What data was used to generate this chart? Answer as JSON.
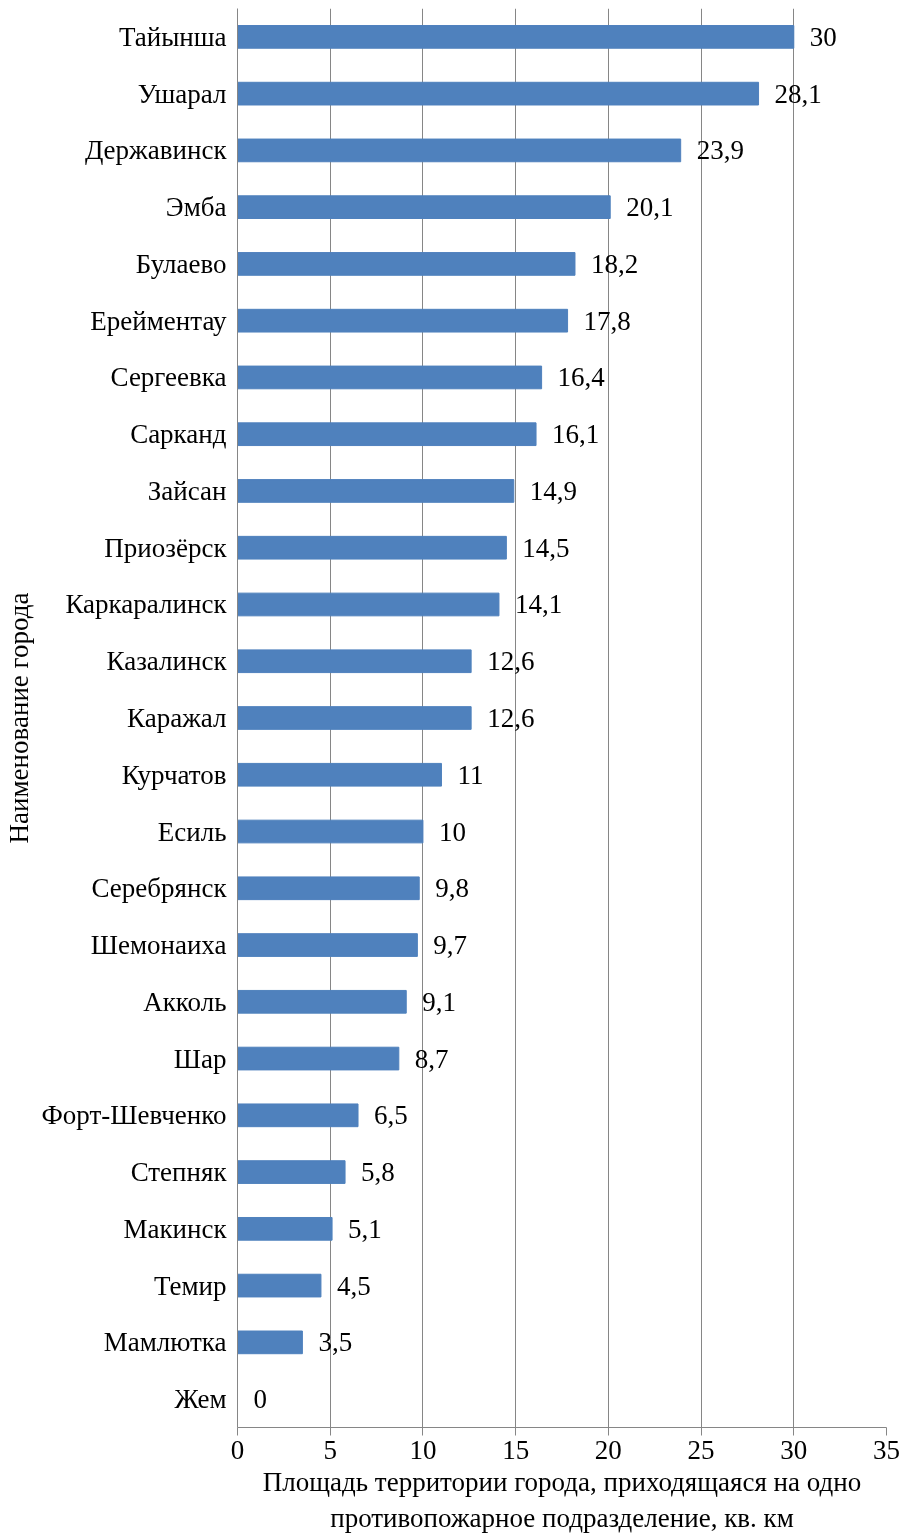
{
  "chart_data": {
    "type": "bar",
    "orientation": "horizontal",
    "xlabel": "Площадь территории города, приходящаяся на одно противопожарное подразделение, кв. км",
    "ylabel": "Наименование города",
    "categories": [
      "Тайынша",
      "Ушарал",
      "Державинск",
      "Эмба",
      "Булаево",
      "Ерейментау",
      "Сергеевка",
      "Сарканд",
      "Зайсан",
      "Приозёрск",
      "Каркаралинск",
      "Казалинск",
      "Каражал",
      "Курчатов",
      "Есиль",
      "Серебрянск",
      "Шемонаиха",
      "Акколь",
      "Шар",
      "Форт-Шевченко",
      "Степняк",
      "Макинск",
      "Темир",
      "Мамлютка",
      "Жем"
    ],
    "values": [
      30,
      28.1,
      23.9,
      20.1,
      18.2,
      17.8,
      16.4,
      16.1,
      14.9,
      14.5,
      14.1,
      12.6,
      12.6,
      11,
      10,
      9.8,
      9.7,
      9.1,
      8.7,
      6.5,
      5.8,
      5.1,
      4.5,
      3.5,
      0
    ],
    "value_labels": [
      "30",
      "28,1",
      "23,9",
      "20,1",
      "18,2",
      "17,8",
      "16,4",
      "16,1",
      "14,9",
      "14,5",
      "14,1",
      "12,6",
      "12,6",
      "11",
      "10",
      "9,8",
      "9,7",
      "9,1",
      "8,7",
      "6,5",
      "5,8",
      "5,1",
      "4,5",
      "3,5",
      "0"
    ],
    "color": "#4f81bd",
    "xlim": [
      0,
      35
    ],
    "xticks": [
      0,
      5,
      10,
      15,
      20,
      25,
      30,
      35
    ],
    "grid": "x"
  }
}
